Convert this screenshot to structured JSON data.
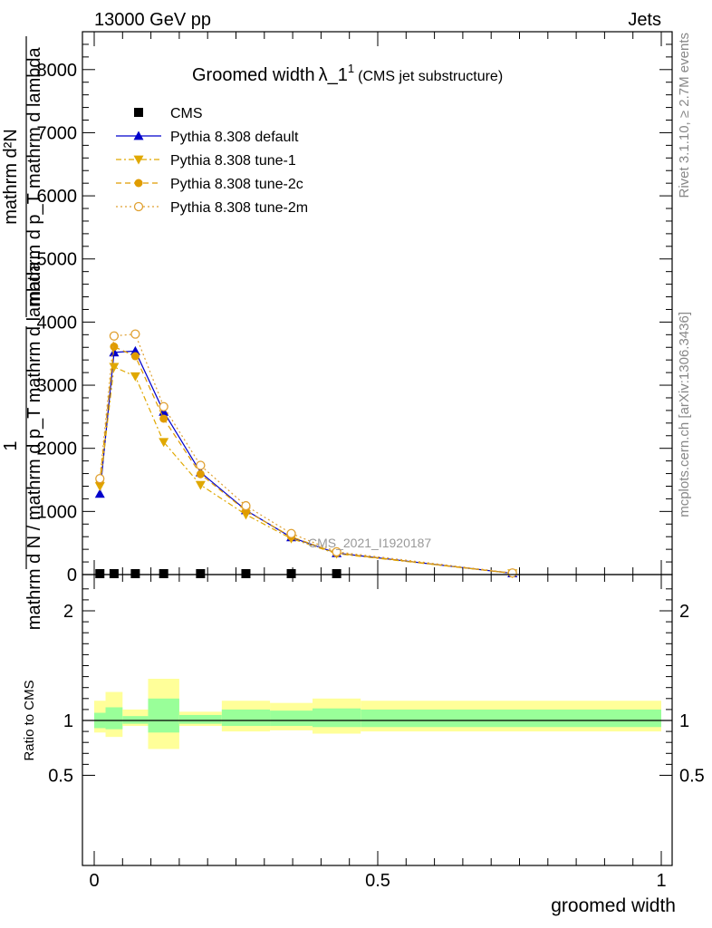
{
  "header": {
    "left": "13000 GeV pp",
    "right": "Jets"
  },
  "side_labels": {
    "rivet": "Rivet 3.1.10, ≥ 2.7M events",
    "site": "mcplots.cern.ch [arXiv:1306.3436]"
  },
  "watermark": "CMS_2021_I1920187",
  "chart_data": {
    "type": "line",
    "title": {
      "main": "Groomed width",
      "lambda": "λ_1",
      "sup": "1",
      "sub": "(CMS jet substructure)"
    },
    "ylabel": {
      "numer": "1",
      "denom": "mathrm d N / mathrm d p_T mathrm d lambda",
      "numer2": "mathrm d²N",
      "denom2": "mathrm d p_T mathrm d lambda"
    },
    "ratio_ylabel": "Ratio to CMS",
    "xlabel": "groomed width",
    "xlim": [
      0,
      1
    ],
    "ylim": [
      0,
      8600
    ],
    "ratio_ylim": [
      0.43,
      2.3
    ],
    "x_ticks": [
      {
        "v": 0,
        "label": "0"
      },
      {
        "v": 0.5,
        "label": "0.5"
      },
      {
        "v": 1,
        "label": "1"
      }
    ],
    "y_ticks": [
      {
        "v": 0,
        "label": "0"
      },
      {
        "v": 1000,
        "label": "1000"
      },
      {
        "v": 2000,
        "label": "2000"
      },
      {
        "v": 3000,
        "label": "3000"
      },
      {
        "v": 4000,
        "label": "4000"
      },
      {
        "v": 5000,
        "label": "5000"
      },
      {
        "v": 6000,
        "label": "6000"
      },
      {
        "v": 7000,
        "label": "7000"
      },
      {
        "v": 8000,
        "label": "8000"
      }
    ],
    "ratio_ticks": [
      {
        "v": 0.5,
        "label": "0.5"
      },
      {
        "v": 1,
        "label": "1"
      },
      {
        "v": 2,
        "label": "2"
      }
    ],
    "cms": {
      "name": "CMS",
      "x": [
        0.01,
        0.035,
        0.0725,
        0.1225,
        0.1875,
        0.2675,
        0.3475,
        0.4275
      ],
      "y": [
        0,
        0,
        0,
        0,
        0,
        0,
        0,
        0
      ],
      "color": "#000000"
    },
    "series": [
      {
        "name": "Pythia 8.308 default",
        "x": [
          0.01,
          0.035,
          0.0725,
          0.1225,
          0.1875,
          0.2675,
          0.3475,
          0.4275,
          0.7375
        ],
        "y": [
          1280,
          3520,
          3540,
          2580,
          1620,
          1020,
          590,
          340,
          20
        ],
        "color": "#0000cc",
        "marker": "triangle-up",
        "line": "solid"
      },
      {
        "name": "Pythia 8.308 tune-1",
        "x": [
          0.01,
          0.035,
          0.0725,
          0.1225,
          0.1875,
          0.2675,
          0.3475,
          0.4275,
          0.7375
        ],
        "y": [
          1400,
          3290,
          3140,
          2100,
          1420,
          950,
          570,
          330,
          20
        ],
        "color": "#e0a800",
        "marker": "triangle-down",
        "line": "dashdot"
      },
      {
        "name": "Pythia 8.308 tune-2c",
        "x": [
          0.01,
          0.035,
          0.0725,
          0.1225,
          0.1875,
          0.2675,
          0.3475,
          0.4275,
          0.7375
        ],
        "y": [
          1480,
          3610,
          3460,
          2470,
          1590,
          1010,
          600,
          340,
          20
        ],
        "color": "#e09c00",
        "marker": "circle",
        "line": "dashed"
      },
      {
        "name": "Pythia 8.308 tune-2m",
        "x": [
          0.01,
          0.035,
          0.0725,
          0.1225,
          0.1875,
          0.2675,
          0.3475,
          0.4275,
          0.7375
        ],
        "y": [
          1520,
          3780,
          3810,
          2660,
          1730,
          1090,
          650,
          360,
          25
        ],
        "color": "#e0a030",
        "marker": "open-circle",
        "line": "dotted"
      }
    ],
    "ratio_bands": [
      {
        "x0": 0.0,
        "x1": 0.02,
        "yel": [
          0.89,
          1.18
        ],
        "grn": [
          0.93,
          1.07
        ]
      },
      {
        "x0": 0.02,
        "x1": 0.05,
        "yel": [
          0.85,
          1.26
        ],
        "grn": [
          0.92,
          1.12
        ]
      },
      {
        "x0": 0.05,
        "x1": 0.095,
        "yel": [
          0.95,
          1.1
        ],
        "grn": [
          0.97,
          1.04
        ]
      },
      {
        "x0": 0.095,
        "x1": 0.15,
        "yel": [
          0.74,
          1.38
        ],
        "grn": [
          0.89,
          1.2
        ]
      },
      {
        "x0": 0.15,
        "x1": 0.225,
        "yel": [
          0.95,
          1.08
        ],
        "grn": [
          0.97,
          1.05
        ]
      },
      {
        "x0": 0.225,
        "x1": 0.31,
        "yel": [
          0.9,
          1.18
        ],
        "grn": [
          0.95,
          1.1
        ]
      },
      {
        "x0": 0.31,
        "x1": 0.385,
        "yel": [
          0.91,
          1.16
        ],
        "grn": [
          0.95,
          1.09
        ]
      },
      {
        "x0": 0.385,
        "x1": 0.47,
        "yel": [
          0.88,
          1.2
        ],
        "grn": [
          0.94,
          1.11
        ]
      },
      {
        "x0": 0.47,
        "x1": 1.0,
        "yel": [
          0.9,
          1.18
        ],
        "grn": [
          0.94,
          1.1
        ]
      }
    ]
  }
}
